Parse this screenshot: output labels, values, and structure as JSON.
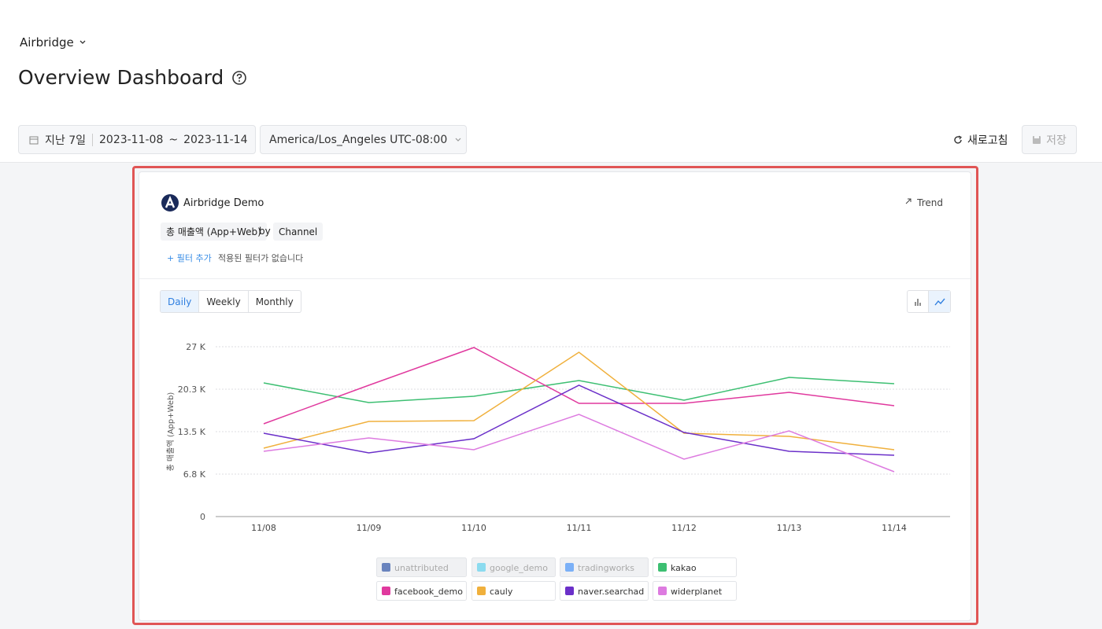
{
  "header": {
    "breadcrumb": "Airbridge",
    "title": "Overview Dashboard"
  },
  "toolbar": {
    "date_preset": "지난 7일",
    "date_start": "2023-11-08",
    "date_sep": "~",
    "date_end": "2023-11-14",
    "timezone": "America/Los_Angeles UTC-08:00",
    "refresh": "새로고침",
    "save": "저장"
  },
  "card": {
    "app": "Airbridge Demo",
    "view": "Trend",
    "metric": "총 매출액 (App+Web)",
    "by": "by",
    "group": "Channel",
    "add_filter": "+ 필터 추가",
    "no_filter": "적용된 필터가 없습니다",
    "tabs": [
      "Daily",
      "Weekly",
      "Monthly"
    ],
    "active_tab": 0
  },
  "chart_data": {
    "type": "line",
    "y_label": "총 매출액 (App+Web)",
    "categories": [
      "11/08",
      "11/09",
      "11/10",
      "11/11",
      "11/12",
      "11/13",
      "11/14"
    ],
    "ylim": [
      0,
      27000
    ],
    "yticks": [
      0,
      {
        "value": 6750,
        "label": "6.8 K"
      },
      {
        "value": 13500,
        "label": "13.5 K"
      },
      {
        "value": 20250,
        "label": "20.3 K"
      },
      {
        "value": 27000,
        "label": "27 K"
      }
    ],
    "grid": true,
    "series": [
      {
        "name": "unattributed",
        "color": "#5b78b8",
        "hidden": true,
        "values": [
          null,
          null,
          null,
          null,
          null,
          null,
          null
        ]
      },
      {
        "name": "google_demo",
        "color": "#7fd8ee",
        "hidden": true,
        "values": [
          null,
          null,
          null,
          null,
          null,
          null,
          null
        ]
      },
      {
        "name": "tradingworks",
        "color": "#6ea8f7",
        "hidden": true,
        "values": [
          null,
          null,
          null,
          null,
          null,
          null,
          null
        ]
      },
      {
        "name": "kakao",
        "color": "#3dbf72",
        "values": [
          21250,
          18125,
          19125,
          21625,
          18500,
          22125,
          21125
        ]
      },
      {
        "name": "facebook_demo",
        "color": "#e0399e",
        "values": [
          14750,
          20875,
          26875,
          18000,
          18000,
          19750,
          17625
        ]
      },
      {
        "name": "cauly",
        "color": "#f0b03c",
        "values": [
          10875,
          15125,
          15250,
          26125,
          13250,
          12750,
          10625
        ]
      },
      {
        "name": "naver.searchad",
        "color": "#6b30c9",
        "values": [
          13250,
          10125,
          12375,
          20875,
          13375,
          10375,
          9750
        ]
      },
      {
        "name": "widerplanet",
        "color": "#dd7be0",
        "values": [
          10375,
          12500,
          10625,
          16250,
          9125,
          13625,
          7125
        ]
      }
    ]
  }
}
